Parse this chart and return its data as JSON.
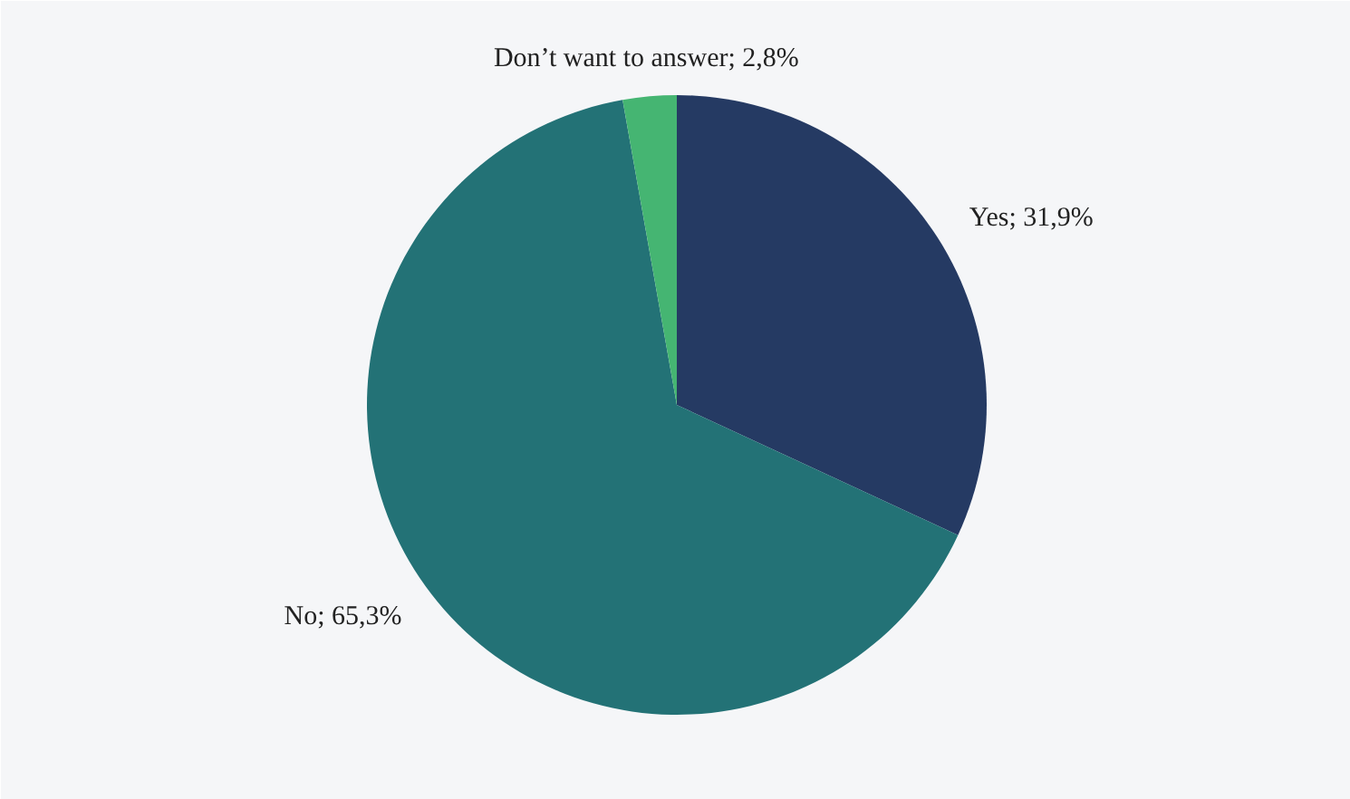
{
  "chart_data": {
    "type": "pie",
    "categories": [
      "Yes",
      "No",
      "Don’t want to answer"
    ],
    "values": [
      31.9,
      65.3,
      2.8
    ],
    "colors": [
      "#253a63",
      "#237276",
      "#45b572"
    ],
    "value_labels": [
      "31,9%",
      "65,3%",
      "2,8%"
    ]
  }
}
